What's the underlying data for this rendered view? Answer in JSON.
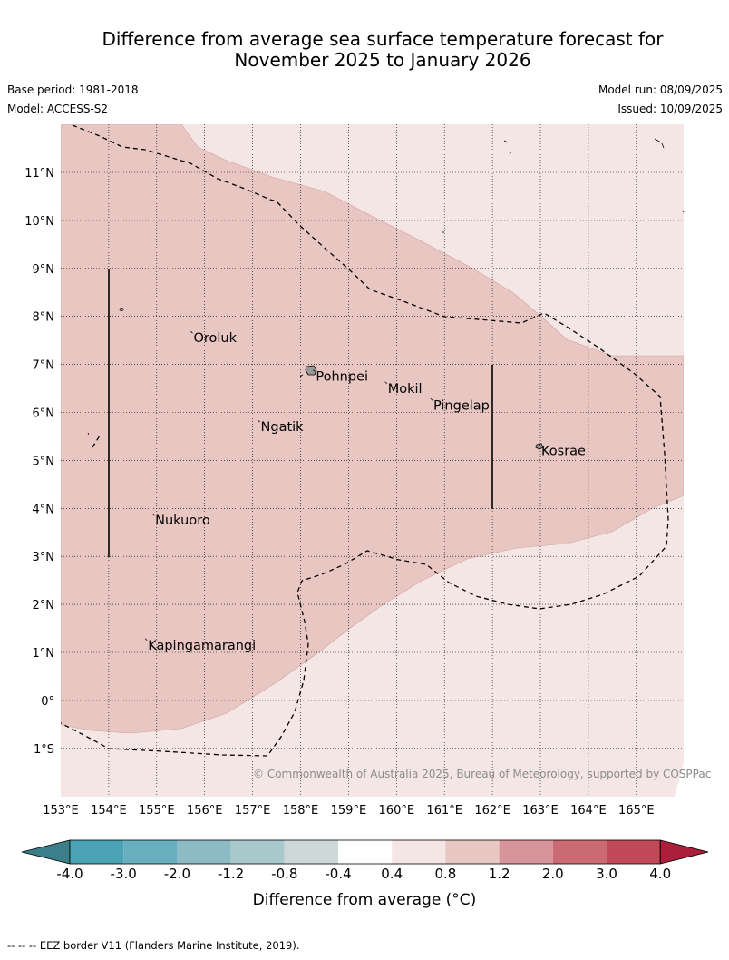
{
  "header": {
    "title_line1": "Difference from average sea surface temperature forecast for",
    "title_line2": "November 2025 to January 2026",
    "base_period": "Base period: 1981-2018",
    "model": "Model: ACCESS-S2",
    "model_run": "Model run: 08/09/2025",
    "issued": "Issued: 10/09/2025"
  },
  "map": {
    "lon_labels": [
      "153°E",
      "154°E",
      "155°E",
      "156°E",
      "157°E",
      "158°E",
      "159°E",
      "160°E",
      "161°E",
      "162°E",
      "163°E",
      "164°E",
      "165°E"
    ],
    "lat_labels": [
      "11°N",
      "10°N",
      "9°N",
      "8°N",
      "7°N",
      "6°N",
      "5°N",
      "4°N",
      "3°N",
      "2°N",
      "1°N",
      "0°",
      "1°S"
    ],
    "places": [
      {
        "name": "Oroluk",
        "lon": 155.75,
        "lat": 7.65
      },
      {
        "name": "Pohnpei",
        "lon": 158.3,
        "lat": 6.85
      },
      {
        "name": "Mokil",
        "lon": 159.8,
        "lat": 6.6
      },
      {
        "name": "Pingelap",
        "lon": 160.75,
        "lat": 6.25
      },
      {
        "name": "Ngatik",
        "lon": 157.15,
        "lat": 5.8
      },
      {
        "name": "Kosrae",
        "lon": 163.0,
        "lat": 5.3
      },
      {
        "name": "Nukuoro",
        "lon": 154.95,
        "lat": 3.85
      },
      {
        "name": "Kapingamarangi",
        "lon": 154.8,
        "lat": 1.25
      }
    ],
    "copyright": "© Commonwealth of Australia 2025, Bureau of Meteorology, supported by COSPPac",
    "colors": {
      "anomaly_0_4_to_0_8": "#f4e6e5",
      "anomaly_0_8_to_1_2": "#e8c6c2"
    }
  },
  "colorbar": {
    "tick_labels": [
      "-4.0",
      "-3.0",
      "-2.0",
      "-1.2",
      "-0.8",
      "-0.4",
      "0.4",
      "0.8",
      "1.2",
      "2.0",
      "3.0",
      "4.0"
    ],
    "colors": [
      "#3a7f8a",
      "#4aa4b5",
      "#68afbf",
      "#8cbac5",
      "#aac9cd",
      "#cfd8d9",
      "#ffffff",
      "#f4e6e5",
      "#e8c6c2",
      "#d8949a",
      "#cc6a74",
      "#c04858",
      "#ab1f3a"
    ],
    "label": "Difference from average (°C)"
  },
  "footnote": "-- -- -- EEZ border V11 (Flanders Marine Institute, 2019)."
}
